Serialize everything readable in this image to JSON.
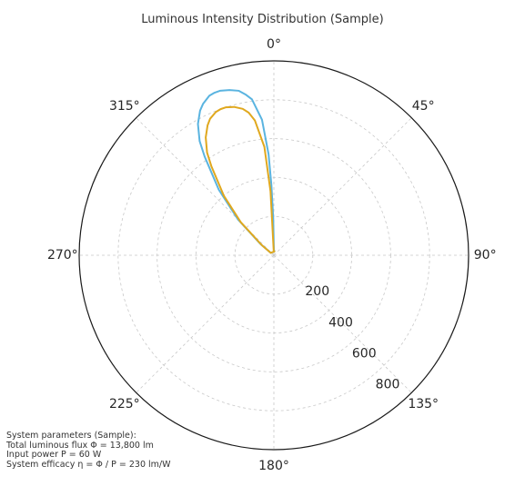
{
  "chart_data": {
    "type": "polar-line",
    "title": "Luminous Intensity Distribution (Sample)",
    "theta_zero": "top",
    "theta_direction": "clockwise",
    "angle_ticks": [
      {
        "deg": 0,
        "label": "0°"
      },
      {
        "deg": 45,
        "label": "45°"
      },
      {
        "deg": 90,
        "label": "90°"
      },
      {
        "deg": 135,
        "label": "135°"
      },
      {
        "deg": 180,
        "label": "180°"
      },
      {
        "deg": 225,
        "label": "225°"
      },
      {
        "deg": 270,
        "label": "270°"
      },
      {
        "deg": 315,
        "label": "315°"
      }
    ],
    "radial_ticks": [
      {
        "value": 200,
        "label": "200"
      },
      {
        "value": 400,
        "label": "400"
      },
      {
        "value": 600,
        "label": "600"
      },
      {
        "value": 800,
        "label": "800"
      }
    ],
    "rmax": 1000,
    "grid": true,
    "series": [
      {
        "color": "#5ab4e0",
        "angle_deg": [
          0,
          1,
          2,
          3,
          5,
          8,
          10,
          12,
          15,
          20,
          25,
          30,
          35,
          40,
          45,
          50,
          52,
          55,
          60,
          65,
          70,
          75,
          80,
          90
        ],
        "intensity": [
          30,
          30,
          30,
          30,
          0,
          0,
          0,
          0,
          0,
          0,
          0,
          0,
          0,
          0,
          0,
          0,
          0,
          0,
          0,
          0,
          0,
          0,
          0,
          0
        ],
        "angle_deg_neg": [
          0,
          -1,
          -2,
          -3,
          -5,
          -8,
          -10,
          -12,
          -15,
          -18,
          -20,
          -22,
          -25,
          -27,
          -30,
          -33,
          -35,
          -40,
          -45,
          -50,
          -52
        ],
        "intensity_neg": [
          30,
          190,
          360,
          520,
          700,
          810,
          840,
          865,
          880,
          890,
          890,
          885,
          860,
          835,
          780,
          700,
          620,
          440,
          260,
          90,
          20
        ]
      },
      {
        "color": "#e0a81e",
        "angle_deg_neg": [
          0,
          -2,
          -3,
          -5,
          -8,
          -10,
          -12,
          -15,
          -18,
          -20,
          -22,
          -25,
          -27,
          -30,
          -33,
          -35,
          -40,
          -45,
          -50,
          -53
        ],
        "intensity_neg": [
          20,
          20,
          330,
          560,
          700,
          745,
          770,
          790,
          800,
          800,
          795,
          775,
          750,
          700,
          630,
          560,
          400,
          240,
          80,
          20
        ]
      }
    ]
  },
  "params": {
    "heading": "System parameters (Sample):",
    "flux": "Total luminous flux Φ = 13,800 lm",
    "power": "Input power P = 60 W",
    "efficacy": "System efficacy η = Φ / P = 230 lm/W"
  }
}
